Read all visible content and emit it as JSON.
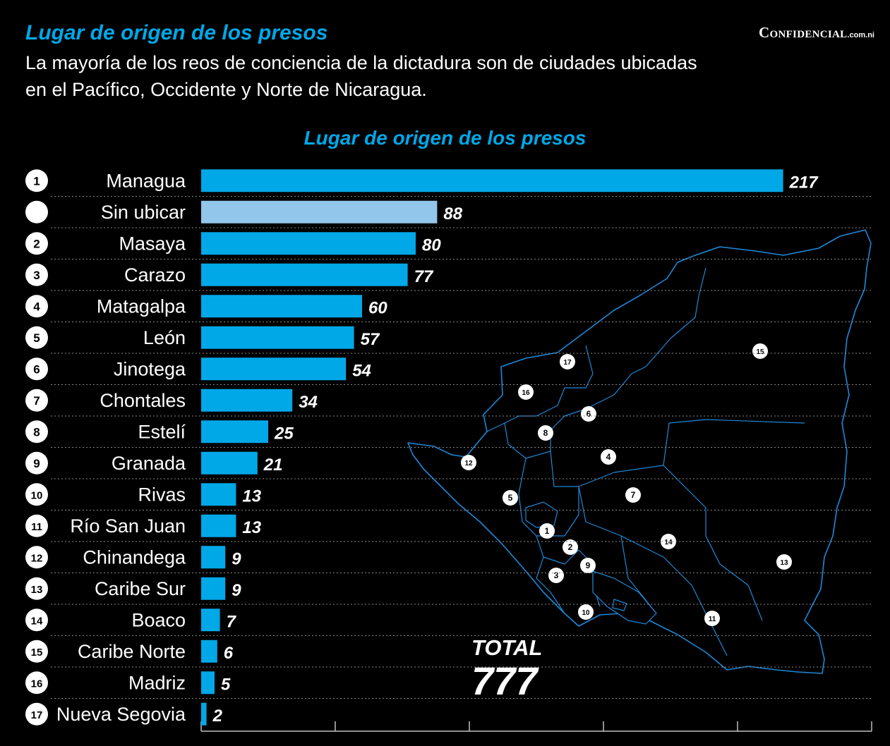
{
  "header": {
    "title": "Lugar de origen de los presos",
    "subtitle": "La mayoría de los reos de conciencia de la dictadura son de ciudades ubicadas en el Pacífico, Occidente y Norte de Nicaragua.",
    "brand": "Confidencial",
    "brand_suffix": ".com.ni"
  },
  "total": {
    "label": "TOTAL",
    "value": "777"
  },
  "colors": {
    "bar": "#00a8e8",
    "bar_unlocated": "#92c6ea",
    "map_stroke": "#1e88d8",
    "background": "#000000"
  },
  "chart_data": {
    "type": "bar",
    "orientation": "horizontal",
    "title": "Lugar de origen de los presos",
    "xlabel": "",
    "ylabel": "",
    "xlim": [
      0,
      250
    ],
    "grid": false,
    "rows": [
      {
        "rank": "1",
        "name": "Managua",
        "value": 217
      },
      {
        "rank": "",
        "name": "Sin ubicar",
        "value": 88,
        "unlocated": true
      },
      {
        "rank": "2",
        "name": "Masaya",
        "value": 80
      },
      {
        "rank": "3",
        "name": "Carazo",
        "value": 77
      },
      {
        "rank": "4",
        "name": "Matagalpa",
        "value": 60
      },
      {
        "rank": "5",
        "name": "León",
        "value": 57
      },
      {
        "rank": "6",
        "name": "Jinotega",
        "value": 54
      },
      {
        "rank": "7",
        "name": "Chontales",
        "value": 34
      },
      {
        "rank": "8",
        "name": "Estelí",
        "value": 25
      },
      {
        "rank": "9",
        "name": "Granada",
        "value": 21
      },
      {
        "rank": "10",
        "name": "Rivas",
        "value": 13
      },
      {
        "rank": "11",
        "name": "Río San Juan",
        "value": 13
      },
      {
        "rank": "12",
        "name": "Chinandega",
        "value": 9
      },
      {
        "rank": "13",
        "name": "Caribe Sur",
        "value": 9
      },
      {
        "rank": "14",
        "name": "Boaco",
        "value": 7
      },
      {
        "rank": "15",
        "name": "Caribe Norte",
        "value": 6
      },
      {
        "rank": "16",
        "name": "Madriz",
        "value": 5
      },
      {
        "rank": "17",
        "name": "Nueva Segovia",
        "value": 2
      }
    ]
  },
  "map": {
    "markers": [
      {
        "n": "1"
      },
      {
        "n": "2"
      },
      {
        "n": "3"
      },
      {
        "n": "4"
      },
      {
        "n": "5"
      },
      {
        "n": "6"
      },
      {
        "n": "7"
      },
      {
        "n": "8"
      },
      {
        "n": "9"
      },
      {
        "n": "10"
      },
      {
        "n": "11"
      },
      {
        "n": "12"
      },
      {
        "n": "13"
      },
      {
        "n": "14"
      },
      {
        "n": "15"
      },
      {
        "n": "16"
      },
      {
        "n": "17"
      }
    ]
  }
}
